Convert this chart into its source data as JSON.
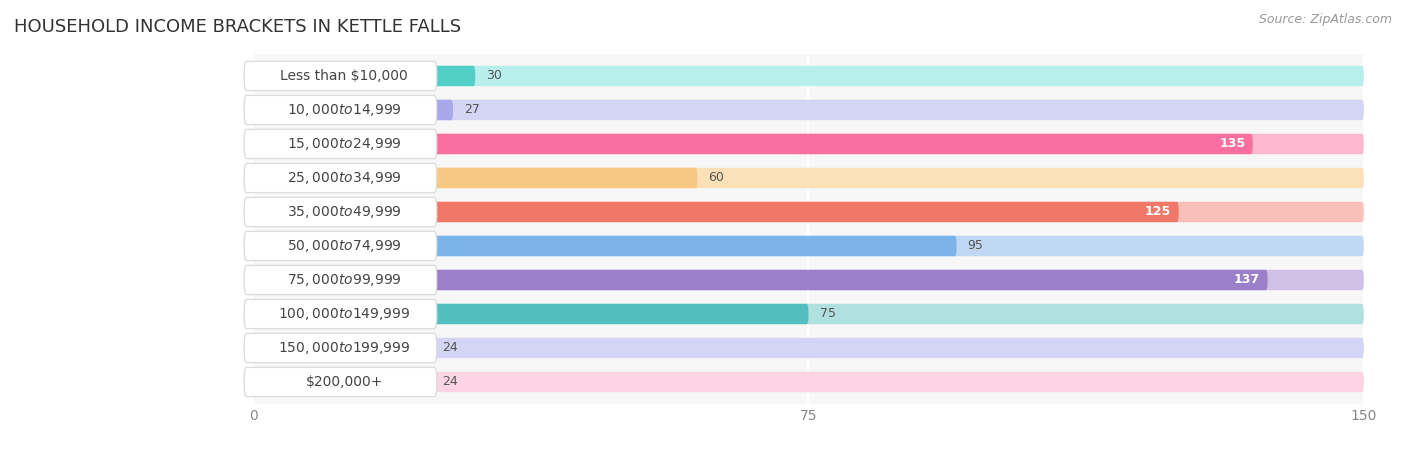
{
  "title": "HOUSEHOLD INCOME BRACKETS IN KETTLE FALLS",
  "source": "Source: ZipAtlas.com",
  "categories": [
    "Less than $10,000",
    "$10,000 to $14,999",
    "$15,000 to $24,999",
    "$25,000 to $34,999",
    "$35,000 to $49,999",
    "$50,000 to $74,999",
    "$75,000 to $99,999",
    "$100,000 to $149,999",
    "$150,000 to $199,999",
    "$200,000+"
  ],
  "values": [
    30,
    27,
    135,
    60,
    125,
    95,
    137,
    75,
    24,
    24
  ],
  "bar_colors": [
    "#52cfc7",
    "#a8a8e8",
    "#f96fa0",
    "#f8c882",
    "#f07868",
    "#7ab4e8",
    "#9b7fc8",
    "#52bfbe",
    "#b0b0ee",
    "#f8b0c8"
  ],
  "bar_bg_colors": [
    "#b8eeec",
    "#d4d4f4",
    "#fdb8d0",
    "#fce0b8",
    "#f8c0b8",
    "#c0d8f4",
    "#d0c0e8",
    "#b0e0e0",
    "#d4d4f4",
    "#fcd4e4"
  ],
  "xlim": [
    0,
    150
  ],
  "xticks": [
    0,
    75,
    150
  ],
  "bg_color": "#ffffff",
  "plot_bg_color": "#f7f7f7",
  "title_fontsize": 13,
  "label_fontsize": 10,
  "value_fontsize": 9,
  "value_threshold": 100
}
